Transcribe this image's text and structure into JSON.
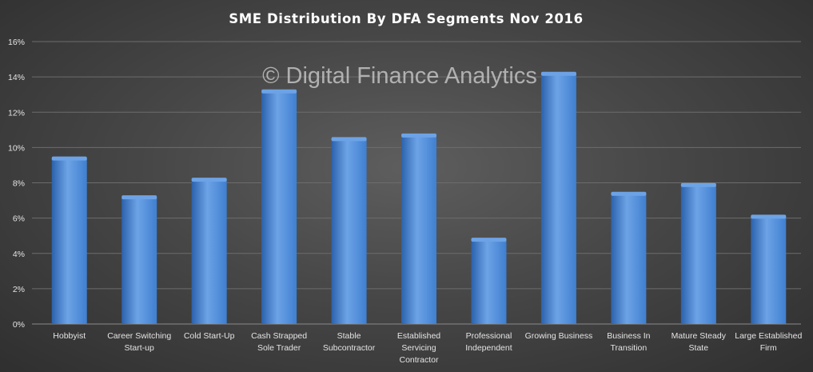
{
  "chart_data": {
    "type": "bar",
    "title": "SME Distribution  By DFA Segments  Nov 2016",
    "watermark": "© Digital Finance Analytics",
    "categories": [
      "Hobbyist",
      "Career Switching Start-up",
      "Cold Start-Up",
      "Cash Strapped Sole Trader",
      "Stable Subcontractor",
      "Established Servicing Contractor",
      "Professional Independent",
      "Growing Business",
      "Business In Transition",
      "Mature Steady State",
      "Large Established Firm"
    ],
    "category_lines": [
      [
        "Hobbyist"
      ],
      [
        "Career Switching",
        "Start-up"
      ],
      [
        "Cold Start-Up"
      ],
      [
        "Cash Strapped",
        "Sole Trader"
      ],
      [
        "Stable",
        "Subcontractor"
      ],
      [
        "Established",
        "Servicing",
        "Contractor"
      ],
      [
        "Professional",
        "Independent"
      ],
      [
        "Growing Business"
      ],
      [
        "Business In",
        "Transition"
      ],
      [
        "Mature Steady",
        "State"
      ],
      [
        "Large Established",
        "Firm"
      ]
    ],
    "values": [
      9.4,
      7.2,
      8.2,
      13.2,
      10.5,
      10.7,
      4.8,
      14.2,
      7.4,
      7.9,
      6.1
    ],
    "yticks": [
      "0%",
      "2%",
      "4%",
      "6%",
      "8%",
      "10%",
      "12%",
      "14%",
      "16%"
    ],
    "ylim": [
      0,
      16
    ],
    "ytick_step": 2,
    "xlabel": "",
    "ylabel": "",
    "grid": true,
    "legend": "none",
    "colors": {
      "bar": "#3f7fd0",
      "bar_light": "#6da3e6",
      "bar_dark": "#2b62ad"
    }
  }
}
